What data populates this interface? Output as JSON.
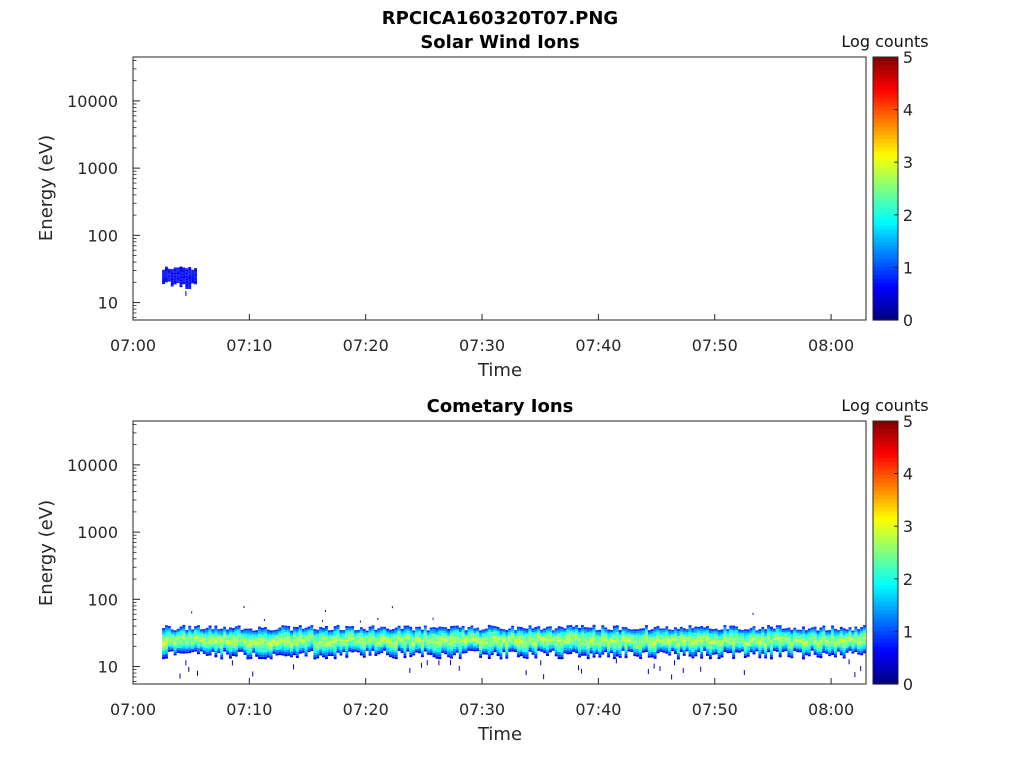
{
  "figure": {
    "title": "RPCICA160320T07.PNG"
  },
  "colormap": "jet",
  "chart_data": [
    {
      "type": "heatmap",
      "title": "Solar Wind Ions",
      "xlabel": "Time",
      "ylabel": "Energy (eV)",
      "y_scale": "log",
      "ylim": [
        5.5,
        45000
      ],
      "x_range": [
        "07:00",
        "08:03"
      ],
      "xticks": [
        "07:00",
        "07:10",
        "07:20",
        "07:30",
        "07:40",
        "07:50",
        "08:00"
      ],
      "yticks": [
        "10",
        "100",
        "1000",
        "10000"
      ],
      "colorbar": {
        "label": "Log counts",
        "range": [
          0,
          5
        ],
        "ticks": [
          "0",
          "1",
          "2",
          "3",
          "4",
          "5"
        ]
      },
      "data_regions": [
        {
          "time_start": "07:02.5",
          "time_end": "07:05.5",
          "energy_low": 18,
          "energy_high": 32,
          "log_counts": 0.6
        }
      ],
      "grid": false
    },
    {
      "type": "heatmap",
      "title": "Cometary Ions",
      "xlabel": "Time",
      "ylabel": "Energy (eV)",
      "y_scale": "log",
      "ylim": [
        5.5,
        45000
      ],
      "x_range": [
        "07:00",
        "08:03"
      ],
      "xticks": [
        "07:00",
        "07:10",
        "07:20",
        "07:30",
        "07:40",
        "07:50",
        "08:00"
      ],
      "yticks": [
        "10",
        "100",
        "1000",
        "10000"
      ],
      "colorbar": {
        "label": "Log counts",
        "range": [
          0,
          5
        ],
        "ticks": [
          "0",
          "1",
          "2",
          "3",
          "4",
          "5"
        ]
      },
      "data_regions": [
        {
          "time_start": "07:02.5",
          "time_end": "08:03",
          "energy_low": 15,
          "energy_high": 38,
          "log_counts_peak": 2.8,
          "log_counts_edge": 0.5
        }
      ],
      "grid": false
    }
  ]
}
